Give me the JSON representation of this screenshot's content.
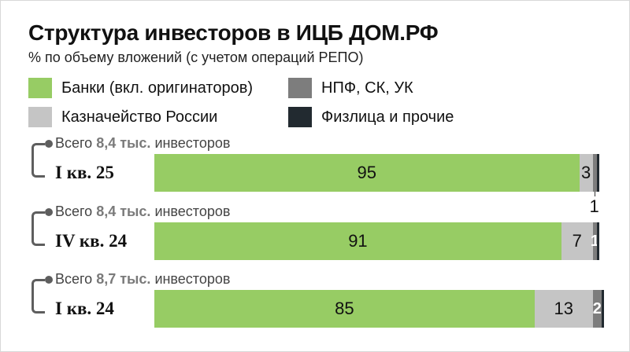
{
  "colors": {
    "banks": "#97cc64",
    "treasury": "#c5c5c5",
    "npf": "#7d7d7d",
    "individuals": "#222a30"
  },
  "title": "Структура инвесторов в ИЦБ ДОМ.РФ",
  "subtitle": "% по объему вложений (с учетом операций РЕПО)",
  "legend": [
    {
      "label": "Банки (вкл. оригинаторов)",
      "color_key": "banks"
    },
    {
      "label": "НПФ, СК, УК",
      "color_key": "npf"
    },
    {
      "label": "Казначейство России",
      "color_key": "treasury"
    },
    {
      "label": "Физлица и прочие",
      "color_key": "individuals"
    }
  ],
  "chart_data": {
    "type": "bar",
    "orientation": "horizontal",
    "stacked": true,
    "categories": [
      "I кв. 25",
      "IV кв. 24",
      "I кв. 24"
    ],
    "series": [
      {
        "name": "Банки (вкл. оригинаторов)",
        "values": [
          95,
          91,
          85
        ],
        "labels": [
          "95",
          "91",
          "85"
        ]
      },
      {
        "name": "Казначейство России",
        "values": [
          3,
          7,
          13
        ],
        "labels": [
          "3",
          "7",
          "13"
        ]
      },
      {
        "name": "НПФ, СК, УК",
        "values": [
          1,
          1,
          2
        ],
        "labels": [
          "1",
          "1",
          "2"
        ]
      },
      {
        "name": "Физлица и прочие",
        "values": [
          0.5,
          0.5,
          0.5
        ],
        "labels": [
          "",
          "",
          ""
        ]
      }
    ],
    "investor_totals": [
      {
        "prefix": "Всего",
        "value": "8,4 тыс.",
        "suffix": "инвесторов"
      },
      {
        "prefix": "Всего",
        "value": "8,4 тыс.",
        "suffix": "инвесторов"
      },
      {
        "prefix": "Всего",
        "value": "8,7 тыс.",
        "suffix": "инвесторов"
      }
    ],
    "xlim": [
      0,
      100
    ],
    "grid": false,
    "legend_position": "top"
  }
}
